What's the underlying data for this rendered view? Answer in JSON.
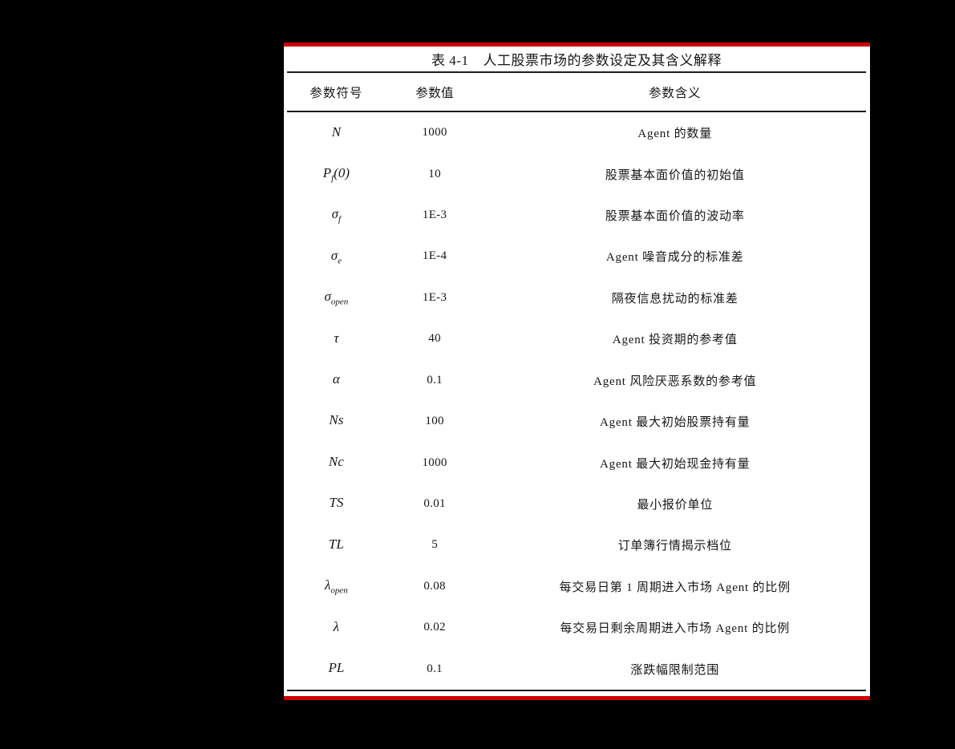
{
  "page": {
    "background_color": "#000000",
    "paper_color": "#ffffff",
    "accent_red": "#cc0000",
    "rule_color": "#1c1c1c"
  },
  "table": {
    "title_label": "表 4-1",
    "title_text": "人工股票市场的参数设定及其含义解释",
    "headers": [
      "参数符号",
      "参数值",
      "参数含义"
    ],
    "rows": [
      {
        "symbol": {
          "base": "N",
          "sub": "",
          "suffix": ""
        },
        "value": "1000",
        "meaning": "Agent 的数量"
      },
      {
        "symbol": {
          "base": "P",
          "sub": "f",
          "suffix": "(0)"
        },
        "value": "10",
        "meaning": "股票基本面价值的初始值"
      },
      {
        "symbol": {
          "base": "σ",
          "sub": "f",
          "suffix": ""
        },
        "value": "1E-3",
        "meaning": "股票基本面价值的波动率"
      },
      {
        "symbol": {
          "base": "σ",
          "sub": "e",
          "suffix": ""
        },
        "value": "1E-4",
        "meaning": "Agent 噪音成分的标准差"
      },
      {
        "symbol": {
          "base": "σ",
          "sub": "open",
          "suffix": ""
        },
        "value": "1E-3",
        "meaning": "隔夜信息扰动的标准差"
      },
      {
        "symbol": {
          "base": "τ",
          "sub": "",
          "suffix": ""
        },
        "value": "40",
        "meaning": "Agent 投资期的参考值"
      },
      {
        "symbol": {
          "base": "α",
          "sub": "",
          "suffix": ""
        },
        "value": "0.1",
        "meaning": "Agent 风险厌恶系数的参考值"
      },
      {
        "symbol": {
          "base": "Ns",
          "sub": "",
          "suffix": ""
        },
        "value": "100",
        "meaning": "Agent 最大初始股票持有量"
      },
      {
        "symbol": {
          "base": "Nc",
          "sub": "",
          "suffix": ""
        },
        "value": "1000",
        "meaning": "Agent 最大初始现金持有量"
      },
      {
        "symbol": {
          "base": "TS",
          "sub": "",
          "suffix": ""
        },
        "value": "0.01",
        "meaning": "最小报价单位"
      },
      {
        "symbol": {
          "base": "TL",
          "sub": "",
          "suffix": ""
        },
        "value": "5",
        "meaning": "订单簿行情揭示档位"
      },
      {
        "symbol": {
          "base": "λ",
          "sub": "open",
          "suffix": ""
        },
        "value": "0.08",
        "meaning": "每交易日第 1 周期进入市场 Agent 的比例"
      },
      {
        "symbol": {
          "base": "λ",
          "sub": "",
          "suffix": ""
        },
        "value": "0.02",
        "meaning": "每交易日剩余周期进入市场 Agent 的比例"
      },
      {
        "symbol": {
          "base": "PL",
          "sub": "",
          "suffix": ""
        },
        "value": "0.1",
        "meaning": "涨跌幅限制范围"
      }
    ]
  }
}
